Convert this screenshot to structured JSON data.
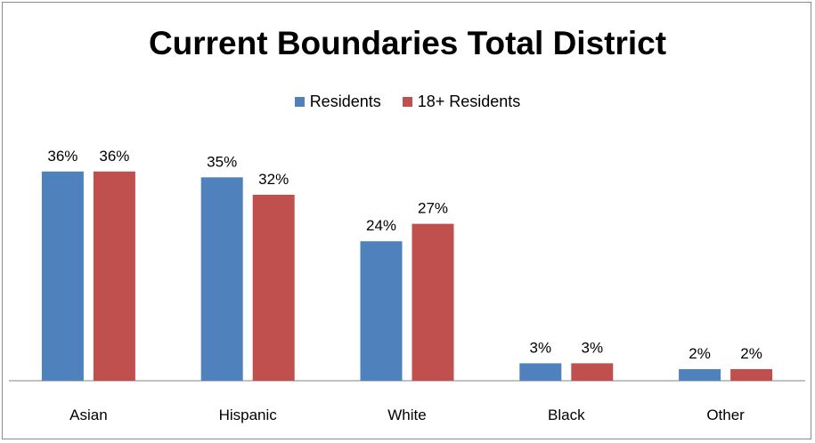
{
  "chart_data": {
    "type": "bar",
    "title": "Current Boundaries Total District",
    "categories": [
      "Asian",
      "Hispanic",
      "White",
      "Black",
      "Other"
    ],
    "series": [
      {
        "name": "Residents",
        "values": [
          36,
          35,
          24,
          3,
          2
        ],
        "labels": [
          "36%",
          "35%",
          "24%",
          "3%",
          "2%"
        ],
        "color": "#4f81bd"
      },
      {
        "name": "18+ Residents",
        "values": [
          36,
          32,
          27,
          3,
          2
        ],
        "labels": [
          "36%",
          "32%",
          "27%",
          "3%",
          "2%"
        ],
        "color": "#c0504d"
      }
    ],
    "ylim": [
      0,
      37.5
    ],
    "unit": "%",
    "legend_position": "top",
    "grid": false
  }
}
